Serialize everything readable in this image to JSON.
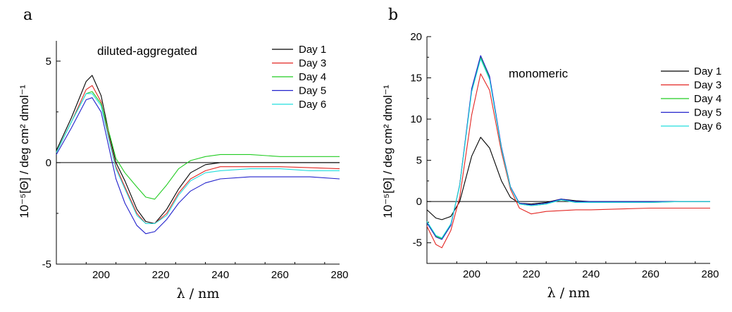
{
  "chart_data": [
    {
      "type": "line",
      "panel_label": "a",
      "annotation": "diluted-aggregated",
      "xlabel": "λ / nm",
      "ylabel": "10⁻⁵[Θ] / deg cm² dmol⁻¹",
      "xlim": [
        185,
        280
      ],
      "ylim": [
        -5,
        6
      ],
      "xticks": [
        200,
        220,
        240,
        260,
        280
      ],
      "yticks": [
        -5,
        0,
        5
      ],
      "zero_line": true,
      "legend_position": "top-right",
      "series": [
        {
          "name": "Day 1",
          "color": "#000000",
          "x": [
            185,
            190,
            195,
            197,
            200,
            203,
            205,
            208,
            212,
            215,
            218,
            222,
            226,
            230,
            235,
            240,
            250,
            260,
            270,
            280
          ],
          "y": [
            0.6,
            2.2,
            4.0,
            4.3,
            3.3,
            1.2,
            0.0,
            -0.9,
            -2.3,
            -2.9,
            -3.0,
            -2.3,
            -1.3,
            -0.5,
            -0.1,
            0.0,
            0.0,
            0.0,
            0.0,
            0.0
          ]
        },
        {
          "name": "Day 3",
          "color": "#e32622",
          "x": [
            185,
            190,
            195,
            197,
            200,
            203,
            205,
            208,
            212,
            215,
            218,
            222,
            226,
            230,
            235,
            240,
            250,
            260,
            270,
            280
          ],
          "y": [
            0.5,
            2.0,
            3.6,
            3.8,
            3.0,
            1.0,
            -0.2,
            -1.2,
            -2.5,
            -3.0,
            -3.0,
            -2.5,
            -1.5,
            -0.8,
            -0.4,
            -0.2,
            -0.2,
            -0.2,
            -0.25,
            -0.3
          ]
        },
        {
          "name": "Day 4",
          "color": "#22cc22",
          "x": [
            185,
            190,
            195,
            197,
            200,
            203,
            205,
            208,
            212,
            215,
            218,
            222,
            226,
            230,
            235,
            240,
            250,
            260,
            270,
            280
          ],
          "y": [
            0.5,
            2.0,
            3.4,
            3.5,
            2.9,
            1.3,
            0.2,
            -0.5,
            -1.2,
            -1.7,
            -1.8,
            -1.1,
            -0.3,
            0.1,
            0.3,
            0.4,
            0.4,
            0.3,
            0.3,
            0.3
          ]
        },
        {
          "name": "Day 5",
          "color": "#2121cc",
          "x": [
            185,
            190,
            195,
            197,
            200,
            203,
            205,
            208,
            212,
            215,
            218,
            222,
            226,
            230,
            235,
            240,
            250,
            260,
            270,
            280
          ],
          "y": [
            0.4,
            1.7,
            3.1,
            3.2,
            2.5,
            0.5,
            -0.8,
            -2.0,
            -3.1,
            -3.5,
            -3.4,
            -2.8,
            -2.0,
            -1.4,
            -1.0,
            -0.8,
            -0.7,
            -0.7,
            -0.7,
            -0.8
          ]
        },
        {
          "name": "Day 6",
          "color": "#22dddd",
          "x": [
            185,
            190,
            195,
            197,
            200,
            203,
            205,
            208,
            212,
            215,
            218,
            222,
            226,
            230,
            235,
            240,
            250,
            260,
            270,
            280
          ],
          "y": [
            0.5,
            2.0,
            3.4,
            3.4,
            2.8,
            0.9,
            -0.3,
            -1.3,
            -2.6,
            -3.0,
            -3.0,
            -2.6,
            -1.6,
            -0.9,
            -0.5,
            -0.4,
            -0.3,
            -0.3,
            -0.4,
            -0.4
          ]
        }
      ]
    },
    {
      "type": "line",
      "panel_label": "b",
      "annotation": "monomeric",
      "xlabel": "λ / nm",
      "ylabel": "10⁻⁵[Θ] / deg cm² dmol⁻¹",
      "xlim": [
        185,
        280
      ],
      "ylim": [
        -7.5,
        20
      ],
      "xticks": [
        200,
        220,
        240,
        260,
        280
      ],
      "yticks": [
        -5,
        0,
        5,
        10,
        15,
        20
      ],
      "zero_line": true,
      "legend_position": "top-right",
      "series": [
        {
          "name": "Day 1",
          "color": "#000000",
          "x": [
            185,
            188,
            190,
            193,
            196,
            200,
            203,
            206,
            210,
            213,
            216,
            220,
            225,
            230,
            235,
            240,
            250,
            260,
            270,
            280
          ],
          "y": [
            -1.0,
            -2.0,
            -2.2,
            -1.8,
            0.0,
            5.5,
            7.8,
            6.5,
            2.5,
            0.5,
            -0.2,
            -0.3,
            -0.1,
            0.3,
            0.1,
            0.0,
            0.0,
            0.0,
            0.0,
            0.0
          ]
        },
        {
          "name": "Day 3",
          "color": "#e32622",
          "x": [
            185,
            188,
            190,
            193,
            196,
            200,
            203,
            206,
            210,
            213,
            216,
            220,
            225,
            230,
            235,
            240,
            250,
            260,
            270,
            280
          ],
          "y": [
            -3.0,
            -5.2,
            -5.6,
            -3.5,
            0.5,
            10.5,
            15.5,
            13.5,
            6.0,
            1.5,
            -0.8,
            -1.5,
            -1.2,
            -1.1,
            -1.0,
            -1.0,
            -0.9,
            -0.8,
            -0.8,
            -0.8
          ]
        },
        {
          "name": "Day 4",
          "color": "#22cc22",
          "x": [
            185,
            188,
            190,
            193,
            196,
            200,
            203,
            206,
            210,
            213,
            216,
            220,
            225,
            230,
            235,
            240,
            250,
            260,
            270,
            280
          ],
          "y": [
            -2.5,
            -4.2,
            -4.5,
            -2.8,
            2.0,
            13.5,
            17.5,
            15.0,
            6.5,
            1.8,
            -0.3,
            -0.5,
            -0.3,
            0.2,
            -0.1,
            -0.1,
            -0.1,
            -0.1,
            0.0,
            0.0
          ]
        },
        {
          "name": "Day 5",
          "color": "#2121cc",
          "x": [
            185,
            188,
            190,
            193,
            196,
            200,
            203,
            206,
            210,
            213,
            216,
            220,
            225,
            230,
            235,
            240,
            250,
            260,
            270,
            280
          ],
          "y": [
            -2.6,
            -4.3,
            -4.6,
            -2.9,
            2.0,
            13.7,
            17.7,
            15.2,
            6.6,
            1.8,
            -0.2,
            -0.4,
            -0.2,
            0.3,
            0.0,
            0.0,
            0.0,
            0.0,
            0.0,
            0.0
          ]
        },
        {
          "name": "Day 6",
          "color": "#22dddd",
          "x": [
            185,
            188,
            190,
            193,
            196,
            200,
            203,
            206,
            210,
            213,
            216,
            220,
            225,
            230,
            235,
            240,
            250,
            260,
            270,
            280
          ],
          "y": [
            -2.4,
            -4.1,
            -4.4,
            -2.7,
            1.9,
            13.3,
            17.3,
            14.8,
            6.4,
            1.7,
            -0.3,
            -0.5,
            -0.3,
            0.2,
            -0.1,
            -0.1,
            -0.1,
            -0.1,
            0.0,
            0.0
          ]
        }
      ]
    }
  ]
}
